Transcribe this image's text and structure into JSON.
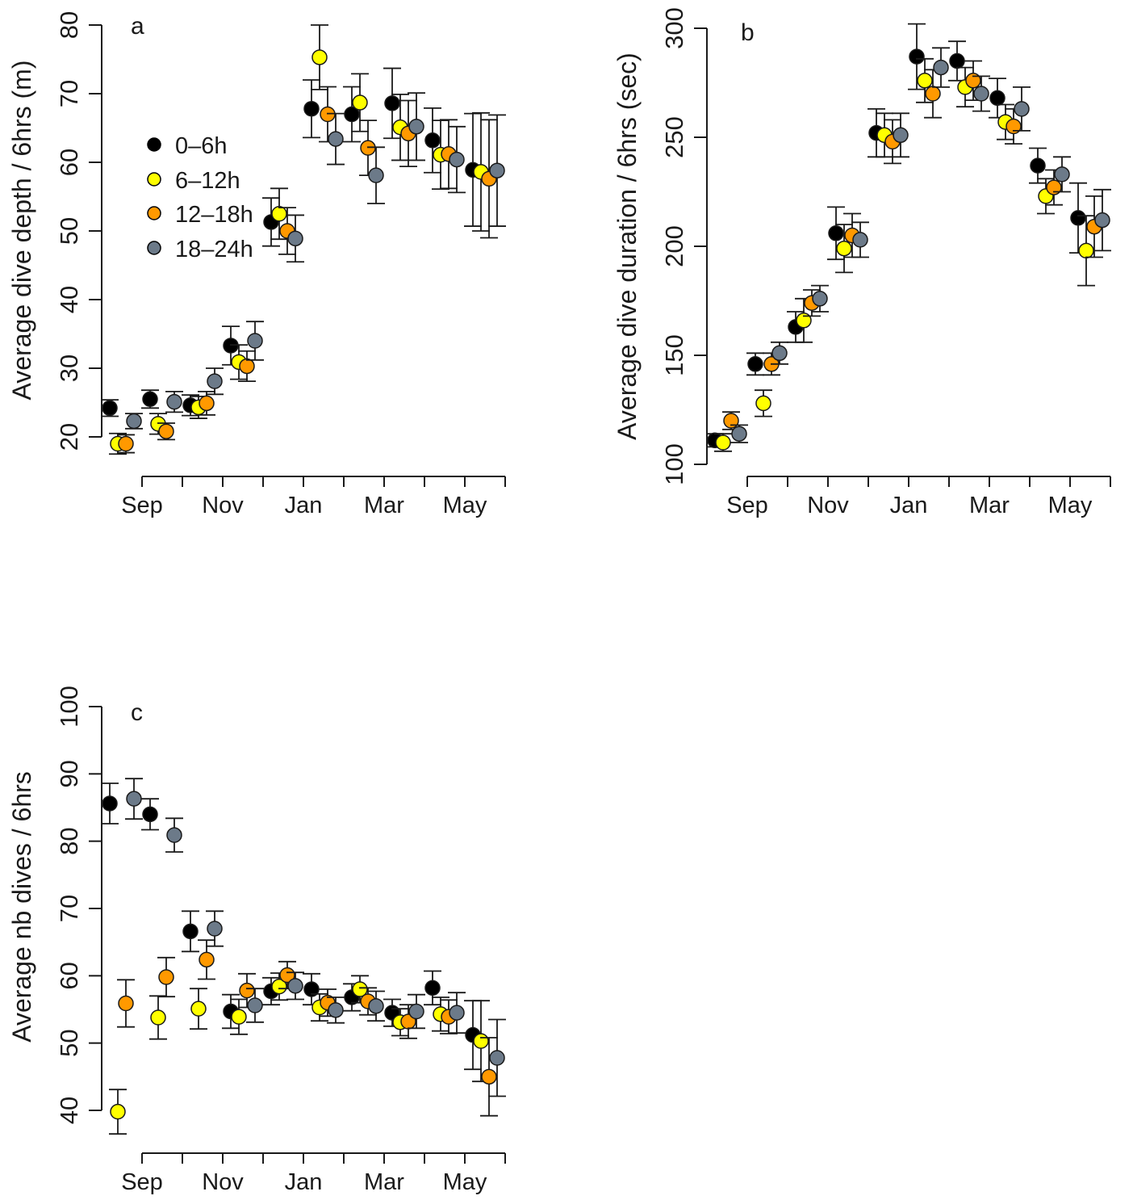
{
  "colors": {
    "0-6h": "#000000",
    "6-12h": "#ffff00",
    "12-18h": "#ff9900",
    "18-24h": "#6c7a89"
  },
  "legend": {
    "placement": "upper-left inside panel a",
    "entries": [
      {
        "key": "0-6h",
        "label": "0–6h"
      },
      {
        "key": "6-12h",
        "label": "6–12h"
      },
      {
        "key": "12-18h",
        "label": "12–18h"
      },
      {
        "key": "18-24h",
        "label": "18–24h"
      }
    ]
  },
  "chart_data": [
    {
      "type": "scatter",
      "panel": "a",
      "ylabel": "Average dive depth / 6hrs (m)",
      "ylim": [
        20,
        80
      ],
      "yticks": [
        20,
        30,
        40,
        50,
        60,
        70,
        80
      ],
      "xticklabels": [
        "Sep",
        "Nov",
        "Jan",
        "Mar",
        "May"
      ],
      "groups": 10,
      "series": [
        {
          "key": "0-6h",
          "x": [
            1,
            2,
            3,
            4,
            5,
            6,
            7,
            8,
            9,
            10
          ],
          "y": [
            24.2,
            25.5,
            24.6,
            33.3,
            51.3,
            67.8,
            67.0,
            68.6,
            63.2,
            58.9
          ],
          "err": [
            1.2,
            1.3,
            1.5,
            2.8,
            3.5,
            4.2,
            4.0,
            5.1,
            4.7,
            8.2
          ]
        },
        {
          "key": "6-12h",
          "x": [
            1,
            2,
            3,
            4,
            5,
            6,
            7,
            8,
            9,
            10
          ],
          "y": [
            19.0,
            21.9,
            24.3,
            30.9,
            52.5,
            75.3,
            68.7,
            65.1,
            61.1,
            58.6
          ],
          "err": [
            1.5,
            1.5,
            1.6,
            2.5,
            3.7,
            4.7,
            4.2,
            4.8,
            5.0,
            8.6
          ]
        },
        {
          "key": "12-18h",
          "x": [
            1,
            2,
            3,
            4,
            5,
            6,
            7,
            8,
            9,
            10
          ],
          "y": [
            19.0,
            20.8,
            24.9,
            30.3,
            50.0,
            67.0,
            62.1,
            64.2,
            61.2,
            57.6
          ],
          "err": [
            1.3,
            1.2,
            1.7,
            2.2,
            3.4,
            4.0,
            4.0,
            4.8,
            5.0,
            8.6
          ]
        },
        {
          "key": "18-24h",
          "x": [
            1,
            2,
            3,
            4,
            5,
            6,
            7,
            8,
            9,
            10
          ],
          "y": [
            22.3,
            25.1,
            28.1,
            34.0,
            48.9,
            63.4,
            58.1,
            65.2,
            60.4,
            58.8
          ],
          "err": [
            1.1,
            1.5,
            1.9,
            2.8,
            3.4,
            3.7,
            4.1,
            4.9,
            4.8,
            8.1
          ]
        }
      ]
    },
    {
      "type": "scatter",
      "panel": "b",
      "ylabel": "Average dive duration / 6hrs (sec)",
      "ylim": [
        100,
        300
      ],
      "yticks": [
        100,
        150,
        200,
        250,
        300
      ],
      "xticklabels": [
        "Sep",
        "Nov",
        "Jan",
        "Mar",
        "May"
      ],
      "groups": 10,
      "series": [
        {
          "key": "0-6h",
          "x": [
            1,
            2,
            3,
            4,
            5,
            6,
            7,
            8,
            9,
            10
          ],
          "y": [
            111,
            146,
            163,
            206,
            252,
            287,
            285,
            268,
            237,
            213
          ],
          "err": [
            3,
            5,
            7,
            12,
            11,
            15,
            9,
            9,
            8,
            16
          ]
        },
        {
          "key": "6-12h",
          "x": [
            1,
            2,
            3,
            4,
            5,
            6,
            7,
            8,
            9,
            10
          ],
          "y": [
            110,
            128,
            166,
            199,
            251,
            276,
            273,
            257,
            223,
            198
          ],
          "err": [
            4,
            6,
            10,
            11,
            10,
            10,
            9,
            8,
            8,
            16
          ]
        },
        {
          "key": "12-18h",
          "x": [
            1,
            2,
            3,
            4,
            5,
            6,
            7,
            8,
            9,
            10
          ],
          "y": [
            120,
            146,
            174,
            205,
            248,
            270,
            276,
            255,
            227,
            209
          ],
          "err": [
            4,
            5,
            6,
            10,
            10,
            11,
            9,
            8,
            8,
            14
          ]
        },
        {
          "key": "18-24h",
          "x": [
            1,
            2,
            3,
            4,
            5,
            6,
            7,
            8,
            9,
            10
          ],
          "y": [
            114,
            151,
            176,
            203,
            251,
            282,
            270,
            263,
            233,
            212
          ],
          "err": [
            4,
            5,
            6,
            8,
            10,
            9,
            8,
            10,
            8,
            14
          ]
        }
      ]
    },
    {
      "type": "scatter",
      "panel": "c",
      "ylabel": "Average nb dives / 6hrs",
      "ylim": [
        40,
        100
      ],
      "yticks": [
        40,
        50,
        60,
        70,
        80,
        90,
        100
      ],
      "xticklabels": [
        "Sep",
        "Nov",
        "Jan",
        "Mar",
        "May"
      ],
      "groups": 10,
      "series": [
        {
          "key": "0-6h",
          "x": [
            1,
            2,
            3,
            4,
            5,
            6,
            7,
            8,
            9,
            10
          ],
          "y": [
            85.6,
            84.0,
            66.6,
            54.7,
            57.7,
            58.0,
            56.8,
            54.5,
            58.2,
            51.2
          ],
          "err": [
            3.0,
            2.3,
            3.0,
            2.5,
            2.0,
            2.3,
            2.0,
            2.0,
            2.5,
            5.1
          ]
        },
        {
          "key": "6-12h",
          "x": [
            1,
            2,
            3,
            4,
            5,
            6,
            7,
            8,
            9,
            10
          ],
          "y": [
            39.8,
            53.8,
            55.1,
            53.9,
            58.4,
            55.3,
            58.0,
            53.1,
            54.3,
            50.3
          ],
          "err": [
            3.3,
            3.2,
            3.0,
            2.6,
            2.0,
            2.0,
            2.0,
            2.0,
            2.5,
            6.0
          ]
        },
        {
          "key": "12-18h",
          "x": [
            1,
            2,
            3,
            4,
            5,
            6,
            7,
            8,
            9,
            10
          ],
          "y": [
            55.9,
            59.8,
            62.4,
            57.8,
            60.1,
            56.0,
            56.2,
            53.2,
            53.9,
            45.0
          ],
          "err": [
            3.5,
            2.9,
            2.9,
            2.5,
            2.0,
            2.0,
            2.0,
            2.5,
            2.5,
            5.8
          ]
        },
        {
          "key": "18-24h",
          "x": [
            1,
            2,
            3,
            4,
            5,
            6,
            7,
            8,
            9,
            10
          ],
          "y": [
            86.3,
            80.9,
            67.0,
            55.6,
            58.5,
            54.9,
            55.5,
            54.7,
            54.5,
            47.8
          ],
          "err": [
            3.0,
            2.5,
            2.6,
            2.5,
            2.0,
            1.9,
            2.2,
            2.5,
            3.0,
            5.7
          ]
        }
      ]
    }
  ]
}
